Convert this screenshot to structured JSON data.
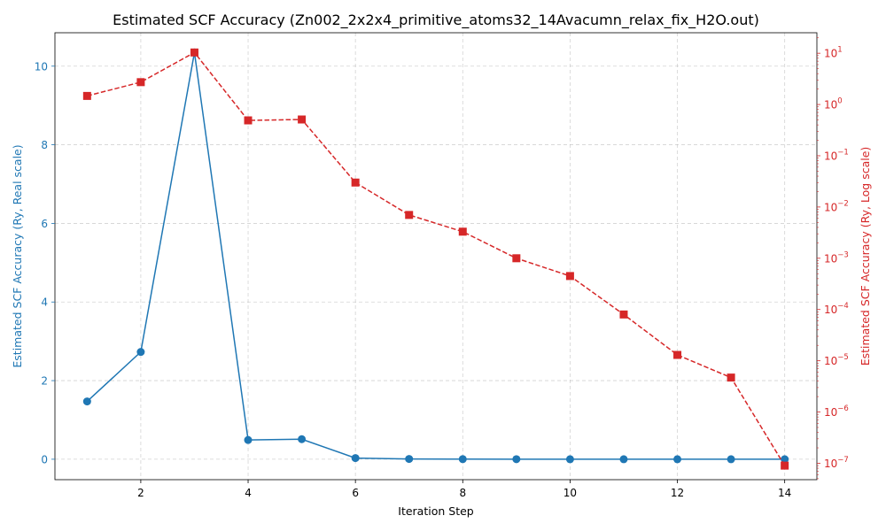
{
  "chart_data": {
    "type": "line",
    "title": "Estimated SCF Accuracy (Zn002_2x2x4_primitive_atoms32_14Avacumn_relax_fix_H2O.out)",
    "xlabel": "Iteration Step",
    "ylabel_left": "Estimated SCF Accuracy (Ry, Real scale)",
    "ylabel_right": "Estimated SCF Accuracy (Ry, Log scale)",
    "x": [
      1,
      2,
      3,
      4,
      5,
      6,
      7,
      8,
      9,
      10,
      11,
      12,
      13,
      14
    ],
    "x_ticks": [
      2,
      4,
      6,
      8,
      10,
      12,
      14
    ],
    "x_tick_labels": [
      "2",
      "4",
      "6",
      "8",
      "10",
      "12",
      "14"
    ],
    "xlim": [
      0.4,
      14.6
    ],
    "y_left_ticks": [
      0,
      2,
      4,
      6,
      8,
      10
    ],
    "y_left_tick_labels": [
      "0",
      "2",
      "4",
      "6",
      "8",
      "10"
    ],
    "ylim_left": [
      -0.52,
      10.85
    ],
    "y_right_scale": "log",
    "y_right_ticks": [
      1e-07,
      1e-06,
      1e-05,
      0.0001,
      0.001,
      0.01,
      0.1,
      1,
      10
    ],
    "y_right_tick_labels": [
      {
        "base": "10",
        "exp": "−7"
      },
      {
        "base": "10",
        "exp": "−6"
      },
      {
        "base": "10",
        "exp": "−5"
      },
      {
        "base": "10",
        "exp": "−4"
      },
      {
        "base": "10",
        "exp": "−3"
      },
      {
        "base": "10",
        "exp": "−2"
      },
      {
        "base": "10",
        "exp": "−1"
      },
      {
        "base": "10",
        "exp": "0"
      },
      {
        "base": "10",
        "exp": "1"
      }
    ],
    "ylim_right_log10": [
      -7.32,
      1.4
    ],
    "grid": true,
    "series": [
      {
        "axis": "left",
        "scale": "linear",
        "color": "#1f77b4",
        "linestyle": "solid",
        "marker": "circle",
        "values": [
          1.47,
          2.73,
          10.35,
          0.49,
          0.51,
          0.03,
          0.007,
          0.0033,
          0.001,
          0.00045,
          8e-05,
          1.3e-05,
          4.7e-06,
          9e-08
        ]
      },
      {
        "axis": "right",
        "scale": "log",
        "color": "#d62728",
        "linestyle": "dashed",
        "marker": "square",
        "values": [
          1.47,
          2.73,
          10.35,
          0.49,
          0.51,
          0.03,
          0.007,
          0.0033,
          0.001,
          0.00045,
          8e-05,
          1.3e-05,
          4.7e-06,
          9e-08
        ]
      }
    ]
  }
}
